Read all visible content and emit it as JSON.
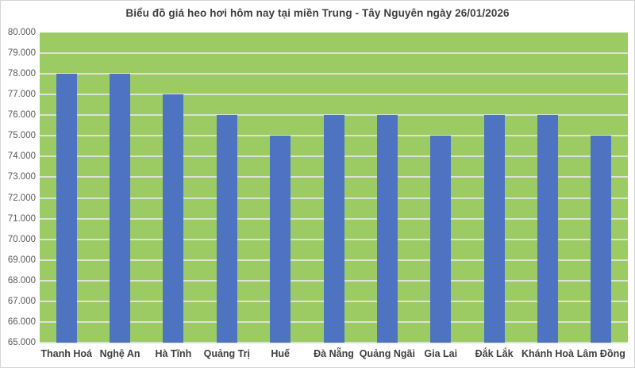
{
  "title": "Biểu đồ giá heo hơi hôm nay tại miền Trung - Tây Nguyên ngày 26/01/2026",
  "chart_data": {
    "type": "bar",
    "title": "Biểu đồ giá heo hơi hôm nay tại miền Trung - Tây Nguyên ngày 26/01/2026",
    "categories": [
      "Thanh Hoá",
      "Nghệ An",
      "Hà Tĩnh",
      "Quảng Trị",
      "Huế",
      "Đà Nẵng",
      "Quảng Ngãi",
      "Gia Lai",
      "Đắk Lắk",
      "Khánh Hoà",
      "Lâm Đồng"
    ],
    "values": [
      78000,
      78000,
      77000,
      76000,
      75000,
      76000,
      76000,
      75000,
      76000,
      76000,
      75000
    ],
    "xlabel": "",
    "ylabel": "",
    "ylim": [
      65000,
      80000
    ],
    "ytick_step": 1000,
    "ytick_labels": [
      "80.000",
      "79.000",
      "78.000",
      "77.000",
      "76.000",
      "75.000",
      "74.000",
      "73.000",
      "72.000",
      "71.000",
      "70.000",
      "69.000",
      "68.000",
      "67.000",
      "66.000",
      "65.000"
    ],
    "grid": true,
    "legend": false,
    "colors": {
      "bar": "#4e73c0",
      "plot_background": "#9bcb62",
      "gridline": "#dde1d8",
      "axis_line": "#d0d0d0",
      "title_text": "#3f3f3f",
      "ytick_text": "#595959",
      "xtick_text": "#3f3f3f",
      "outer_border": "#d6d6d6",
      "page_background": "#ffffff"
    }
  }
}
